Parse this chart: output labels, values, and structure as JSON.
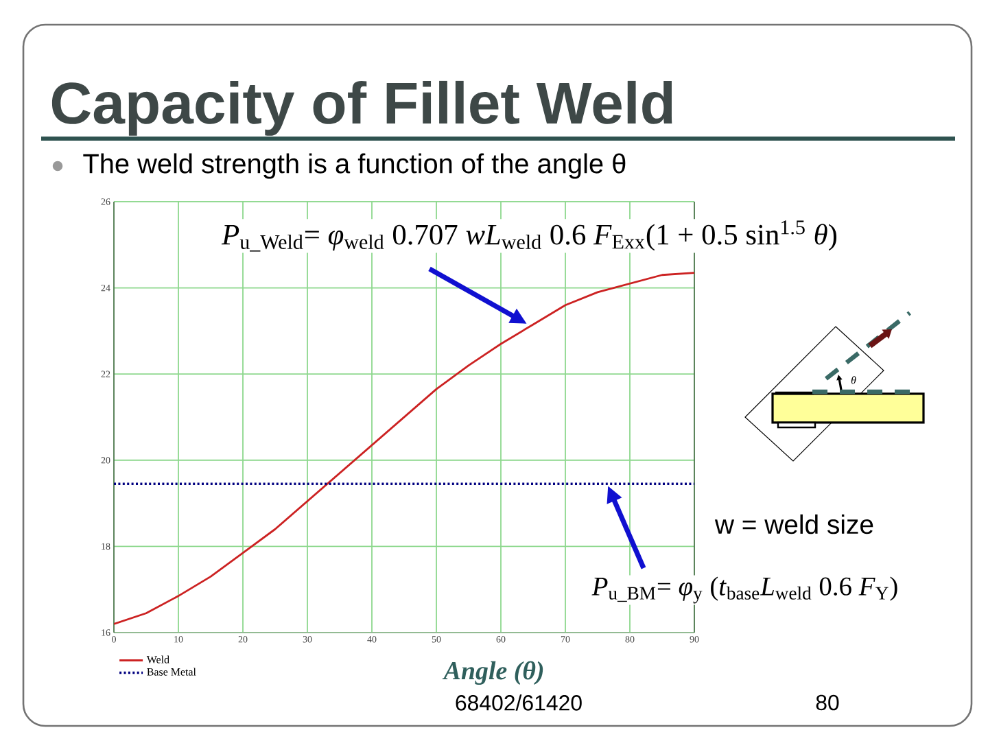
{
  "chart_data": {
    "type": "line",
    "title": "Capacity of Fillet Weld",
    "subtitle": "The weld strength is a function of the angle θ",
    "xlabel": "Angle (θ)",
    "x": [
      0,
      5,
      10,
      15,
      20,
      25,
      30,
      35,
      40,
      45,
      50,
      55,
      60,
      65,
      70,
      75,
      80,
      85,
      90
    ],
    "series": [
      {
        "name": "Weld",
        "color": "#cc2222",
        "line_style": "solid",
        "values": [
          16.2,
          16.45,
          16.85,
          17.3,
          17.85,
          18.4,
          19.05,
          19.7,
          20.35,
          21.0,
          21.65,
          22.2,
          22.7,
          23.15,
          23.6,
          23.9,
          24.1,
          24.3,
          24.35
        ]
      },
      {
        "name": "Base Metal",
        "color": "#000080",
        "line_style": "dotted",
        "x": [
          0,
          90
        ],
        "values": [
          19.45,
          19.45
        ]
      }
    ],
    "xlim": [
      0,
      90
    ],
    "ylim": [
      16,
      26
    ],
    "xticks": [
      0,
      10,
      20,
      30,
      40,
      50,
      60,
      70,
      80,
      90
    ],
    "yticks": [
      16,
      18,
      20,
      22,
      24,
      26
    ],
    "grid": true,
    "legend": "bottom left",
    "marker": "none",
    "annotations": [
      "*P*$_{u_Weld}$= *φ*$_{weld}$ 0.707 *wL*$_{weld}$ 0.6 *F*$_{Exx}$(1 + 0.5 sin$^{1.5}$ *θ*)",
      "*P*$_{u_BM}$= *φ*$_{y}$ (*t*$_{base}$*L*$_{weld}$ 0.6 *F*$_{Y}$)",
      "w = weld size",
      "θ",
      "68402/61420",
      "80"
    ]
  }
}
